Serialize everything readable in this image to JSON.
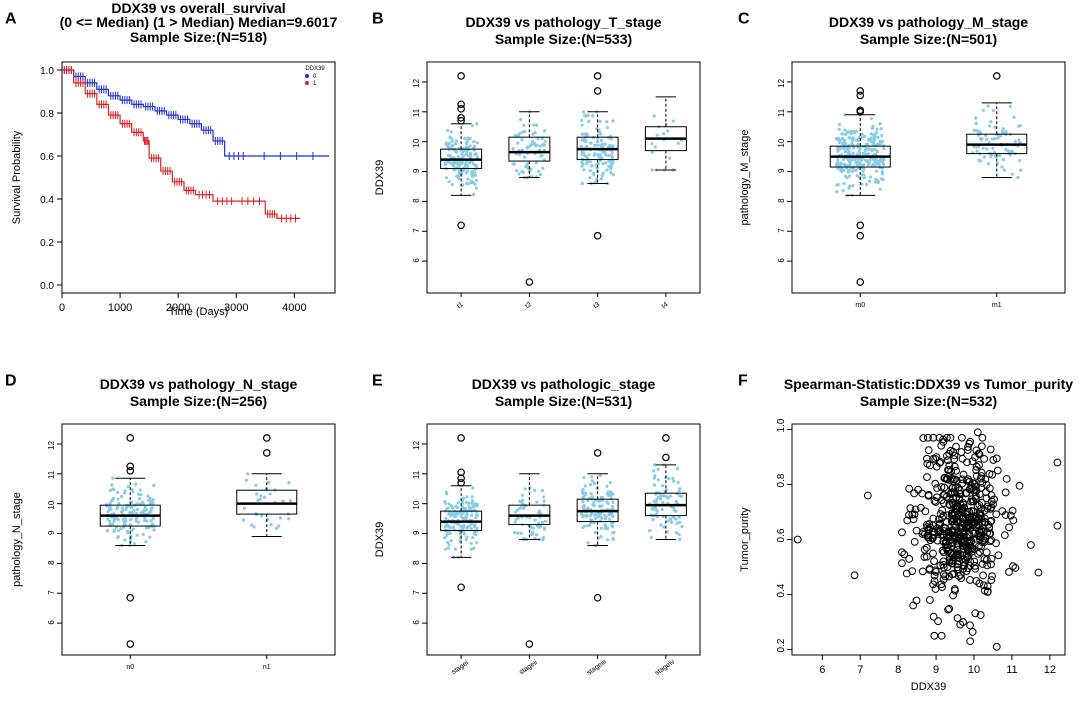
{
  "panels": [
    {
      "letter": "A",
      "type": "km",
      "title": [
        "DDX39 vs overall_survival",
        "(0 <= Median) (1 > Median) Median=9.6017",
        "Sample Size:(N=518)"
      ],
      "xlabel": "Time (Days)",
      "ylabel": "Survival Probability",
      "xlim": [
        0,
        4700
      ],
      "ylim": [
        0,
        1
      ],
      "xticks": [
        "0",
        "1000",
        "2000",
        "3000",
        "4000"
      ],
      "xtick_values": [
        0,
        1000,
        2000,
        3000,
        4000
      ],
      "yticks": [
        "0.0",
        "0.2",
        "0.4",
        "0.6",
        "0.8",
        "1.0"
      ],
      "ytick_values": [
        0,
        0.2,
        0.4,
        0.6,
        0.8,
        1.0
      ],
      "legend_title": "DDX39",
      "legend": [
        {
          "label": "0",
          "color": "#1f2fe0"
        },
        {
          "label": "1",
          "color": "#e02020"
        }
      ],
      "curves": [
        {
          "name": "0",
          "color": "#1f2fe0",
          "points": [
            [
              0,
              1.0
            ],
            [
              200,
              0.97
            ],
            [
              400,
              0.94
            ],
            [
              600,
              0.91
            ],
            [
              800,
              0.88
            ],
            [
              1000,
              0.86
            ],
            [
              1200,
              0.84
            ],
            [
              1400,
              0.83
            ],
            [
              1600,
              0.81
            ],
            [
              1800,
              0.79
            ],
            [
              2000,
              0.77
            ],
            [
              2200,
              0.75
            ],
            [
              2400,
              0.72
            ],
            [
              2600,
              0.67
            ],
            [
              2800,
              0.6
            ],
            [
              3200,
              0.6
            ],
            [
              4600,
              0.6
            ]
          ]
        },
        {
          "name": "1",
          "color": "#e02020",
          "points": [
            [
              0,
              1.0
            ],
            [
              200,
              0.94
            ],
            [
              400,
              0.89
            ],
            [
              600,
              0.84
            ],
            [
              800,
              0.79
            ],
            [
              1000,
              0.75
            ],
            [
              1200,
              0.71
            ],
            [
              1400,
              0.67
            ],
            [
              1500,
              0.59
            ],
            [
              1700,
              0.53
            ],
            [
              1900,
              0.48
            ],
            [
              2100,
              0.44
            ],
            [
              2300,
              0.42
            ],
            [
              2600,
              0.39
            ],
            [
              3000,
              0.39
            ],
            [
              3500,
              0.33
            ],
            [
              3700,
              0.31
            ],
            [
              4100,
              0.31
            ]
          ]
        }
      ]
    },
    {
      "letter": "B",
      "type": "box",
      "title": [
        "DDX39 vs pathology_T_stage",
        "Sample Size:(N=533)"
      ],
      "xlabel": "",
      "ylabel": "DDX39",
      "ylim": [
        5.2,
        12.4
      ],
      "yticks": [
        "6",
        "7",
        "8",
        "9",
        "10",
        "11",
        "12"
      ],
      "ytick_values": [
        6,
        7,
        8,
        9,
        10,
        11,
        12
      ],
      "groups": [
        {
          "label": "t1",
          "q1": 9.1,
          "median": 9.4,
          "q3": 9.75,
          "wlo": 8.2,
          "whi": 10.6,
          "n": 150,
          "outliers": [
            7.2,
            10.7,
            10.8,
            11.1,
            11.25,
            12.2
          ]
        },
        {
          "label": "t2",
          "q1": 9.35,
          "median": 9.65,
          "q3": 10.15,
          "wlo": 8.8,
          "whi": 11.0,
          "n": 70,
          "outliers": [
            5.3
          ]
        },
        {
          "label": "t3",
          "q1": 9.4,
          "median": 9.75,
          "q3": 10.15,
          "wlo": 8.6,
          "whi": 11.0,
          "n": 130,
          "outliers": [
            6.85,
            11.7,
            12.2
          ]
        },
        {
          "label": "t4",
          "q1": 9.7,
          "median": 10.1,
          "q3": 10.5,
          "wlo": 9.05,
          "whi": 11.5,
          "n": 18,
          "outliers": []
        }
      ]
    },
    {
      "letter": "C",
      "type": "box",
      "title": [
        "DDX39 vs pathology_M_stage",
        "Sample Size:(N=501)"
      ],
      "xlabel": "",
      "ylabel": "pathology_M_stage",
      "ylim": [
        5.2,
        12.4
      ],
      "yticks": [
        "6",
        "7",
        "8",
        "9",
        "10",
        "11",
        "12"
      ],
      "ytick_values": [
        6,
        7,
        8,
        9,
        10,
        11,
        12
      ],
      "groups": [
        {
          "label": "m0",
          "q1": 9.15,
          "median": 9.5,
          "q3": 9.85,
          "wlo": 8.2,
          "whi": 10.9,
          "n": 260,
          "outliers": [
            5.3,
            6.85,
            7.2,
            11.0,
            11.05,
            11.55,
            11.7
          ]
        },
        {
          "label": "m1",
          "q1": 9.6,
          "median": 9.9,
          "q3": 10.25,
          "wlo": 8.8,
          "whi": 11.3,
          "n": 90,
          "outliers": [
            12.2
          ]
        }
      ]
    },
    {
      "letter": "D",
      "type": "box",
      "title": [
        "DDX39 vs pathology_N_stage",
        "Sample Size:(N=256)"
      ],
      "xlabel": "",
      "ylabel": "pathology_N_stage",
      "ylim": [
        5.2,
        12.4
      ],
      "yticks": [
        "6",
        "7",
        "8",
        "9",
        "10",
        "11",
        "12"
      ],
      "ytick_values": [
        6,
        7,
        8,
        9,
        10,
        11,
        12
      ],
      "groups": [
        {
          "label": "n0",
          "q1": 9.25,
          "median": 9.6,
          "q3": 9.95,
          "wlo": 8.6,
          "whi": 10.85,
          "n": 150,
          "outliers": [
            5.3,
            6.85,
            11.1,
            11.25,
            12.2
          ]
        },
        {
          "label": "n1",
          "q1": 9.65,
          "median": 10.0,
          "q3": 10.45,
          "wlo": 8.9,
          "whi": 11.0,
          "n": 30,
          "outliers": [
            11.7,
            12.2
          ]
        }
      ]
    },
    {
      "letter": "E",
      "type": "box",
      "title": [
        "DDX39 vs pathologic_stage",
        "Sample Size:(N=531)"
      ],
      "xlabel": "",
      "ylabel": "DDX39",
      "ylim": [
        5.2,
        12.4
      ],
      "yticks": [
        "6",
        "7",
        "8",
        "9",
        "10",
        "11",
        "12"
      ],
      "ytick_values": [
        6,
        7,
        8,
        9,
        10,
        11,
        12
      ],
      "groups": [
        {
          "label": "stagei",
          "q1": 9.1,
          "median": 9.4,
          "q3": 9.75,
          "wlo": 8.2,
          "whi": 10.6,
          "n": 150,
          "outliers": [
            7.2,
            10.7,
            10.85,
            11.05,
            12.2
          ]
        },
        {
          "label": "stageii",
          "q1": 9.3,
          "median": 9.6,
          "q3": 9.95,
          "wlo": 8.8,
          "whi": 11.0,
          "n": 60,
          "outliers": [
            5.3
          ]
        },
        {
          "label": "stageiii",
          "q1": 9.4,
          "median": 9.75,
          "q3": 10.15,
          "wlo": 8.6,
          "whi": 11.0,
          "n": 130,
          "outliers": [
            6.85,
            11.7
          ]
        },
        {
          "label": "stageiv",
          "q1": 9.6,
          "median": 9.95,
          "q3": 10.35,
          "wlo": 8.8,
          "whi": 11.3,
          "n": 80,
          "outliers": [
            11.55,
            12.2
          ]
        }
      ]
    },
    {
      "letter": "F",
      "type": "scatter",
      "title": [
        "Spearman-Statistic:DDX39 vs Tumor_purity",
        "Sample Size:(N=532)"
      ],
      "xlabel": "DDX39",
      "ylabel": "Tumor_purity",
      "xlim": [
        5.2,
        12.4
      ],
      "ylim": [
        0.18,
        1.02
      ],
      "xticks": [
        "6",
        "7",
        "8",
        "9",
        "10",
        "11",
        "12"
      ],
      "xtick_values": [
        6,
        7,
        8,
        9,
        10,
        11,
        12
      ],
      "yticks": [
        "0.2",
        "0.4",
        "0.6",
        "0.8",
        "1.0"
      ],
      "ytick_values": [
        0.2,
        0.4,
        0.6,
        0.8,
        1.0
      ],
      "cluster": {
        "x_center": 9.6,
        "x_sd": 0.55,
        "y_center": 0.66,
        "y_sd": 0.14,
        "n": 520
      },
      "points_extra": [
        [
          5.35,
          0.6
        ],
        [
          6.85,
          0.47
        ],
        [
          7.2,
          0.76
        ],
        [
          12.2,
          0.88
        ],
        [
          12.2,
          0.65
        ],
        [
          11.7,
          0.48
        ],
        [
          11.5,
          0.58
        ],
        [
          10.1,
          0.99
        ],
        [
          9.9,
          0.23
        ],
        [
          10.6,
          0.21
        ]
      ]
    }
  ],
  "colors": {
    "jitter": "#87cce8",
    "box_fill": "#ffffff",
    "box_stroke": "#000000"
  }
}
